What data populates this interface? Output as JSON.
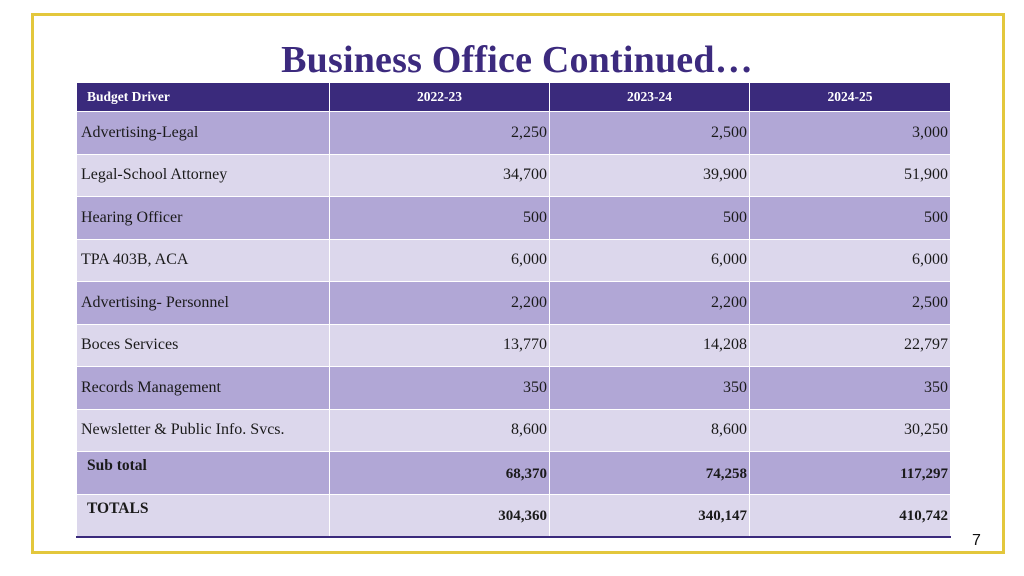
{
  "title": "Business Office Continued…",
  "table": {
    "headers": [
      "Budget Driver",
      "2022-23",
      "2023-24",
      "2024-25"
    ],
    "rows": [
      {
        "label": "Advertising-Legal",
        "values": [
          "2,250",
          "2,500",
          "3,000"
        ]
      },
      {
        "label": "Legal-School Attorney",
        "values": [
          "34,700",
          "39,900",
          "51,900"
        ]
      },
      {
        "label": "Hearing Officer",
        "values": [
          "500",
          "500",
          "500"
        ]
      },
      {
        "label": "TPA 403B, ACA",
        "values": [
          "6,000",
          "6,000",
          "6,000"
        ]
      },
      {
        "label": "Advertising- Personnel",
        "values": [
          "2,200",
          "2,200",
          "2,500"
        ]
      },
      {
        "label": "Boces Services",
        "values": [
          "13,770",
          "14,208",
          "22,797"
        ]
      },
      {
        "label": "Records Management",
        "values": [
          "350",
          "350",
          "350"
        ]
      },
      {
        "label": "Newsletter & Public Info. Svcs.",
        "values": [
          "8,600",
          "8,600",
          "30,250"
        ]
      }
    ],
    "subtotal": {
      "label": "Sub total",
      "values": [
        "68,370",
        "74,258",
        "117,297"
      ]
    },
    "totals": {
      "label": "TOTALS",
      "values": [
        "304,360",
        "340,147",
        "410,742"
      ]
    }
  },
  "page_number": "7",
  "colors": {
    "header_bg": "#3a2a7c",
    "row_dark": "#b1a7d6",
    "row_light": "#dcd7ec",
    "title": "#3c2a7e",
    "frame": "#e3c73c"
  }
}
